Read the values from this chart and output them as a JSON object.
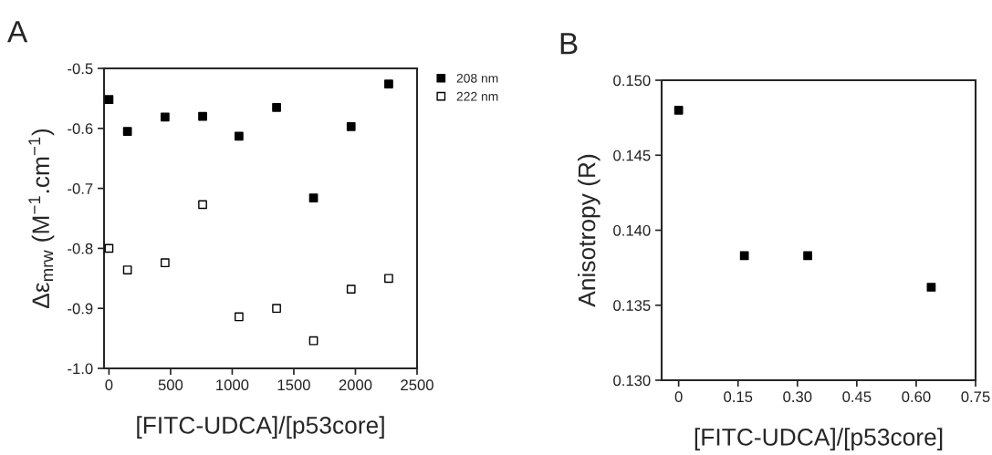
{
  "chart_data": [
    {
      "type": "scatter",
      "title": "A",
      "xlabel": "[FITC-UDCA]/[p53core]",
      "ylabel": "Δε$_{mrw}$ (M$^{−1}$.cm$^{−1}$)",
      "x": [
        0,
        150,
        455,
        760,
        1055,
        1360,
        1660,
        1965,
        2270
      ],
      "series": [
        {
          "name": "208 nm",
          "color": "#000000",
          "values": [
            -0.552,
            -0.605,
            -0.581,
            -0.58,
            -0.613,
            -0.565,
            -0.716,
            -0.597,
            -0.526
          ]
        },
        {
          "name": "222 nm",
          "color": "#ffffff",
          "values": [
            -0.8,
            -0.836,
            -0.824,
            -0.727,
            -0.914,
            -0.9,
            -0.954,
            -0.868,
            -0.85
          ]
        }
      ],
      "xlim": [
        -40,
        2500
      ],
      "xticks": [
        0,
        500,
        1000,
        1500,
        2000,
        2500
      ],
      "ylim": [
        -1.0,
        -0.5
      ],
      "yticks": [
        {
          "value": -1.0,
          "label": "-1.0"
        },
        {
          "value": -0.9,
          "label": "-0.9"
        },
        {
          "value": -0.8,
          "label": "-0.8"
        },
        {
          "value": -0.7,
          "label": "-0.7"
        },
        {
          "value": -0.6,
          "label": "-0.6"
        },
        {
          "value": -0.5,
          "label": "-0.5"
        }
      ],
      "marker": "square",
      "legend": "top right",
      "grid": false
    },
    {
      "type": "scatter",
      "title": "B",
      "xlabel": "[FITC-UDCA]/[p53core]",
      "ylabel": "Anisotropy (R)",
      "x": [
        0,
        0.166,
        0.326,
        0.638
      ],
      "series": [
        {
          "color": "#000000",
          "values": [
            0.148,
            0.1383,
            0.1383,
            0.1362
          ]
        }
      ],
      "xlim": [
        -0.043,
        0.75
      ],
      "xticks": [
        0,
        0.15,
        {
          "value": 0.3,
          "label": "0.30"
        },
        0.45,
        {
          "value": 0.6,
          "label": "0.60"
        },
        0.75
      ],
      "ylim": [
        0.13,
        0.15
      ],
      "yticks": [
        {
          "value": 0.13,
          "label": "0.130"
        },
        0.135,
        {
          "value": 0.14,
          "label": "0.140"
        },
        0.145,
        {
          "value": 0.15,
          "label": "0.150"
        }
      ],
      "marker": "square",
      "grid": false
    }
  ]
}
